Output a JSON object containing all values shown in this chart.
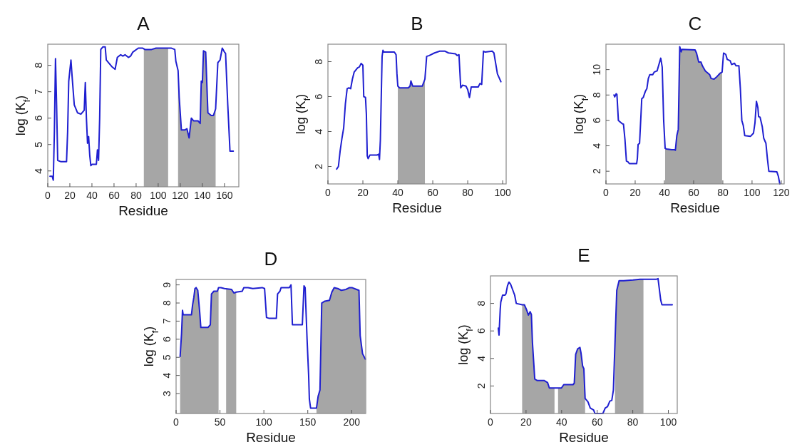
{
  "chart_data": [
    {
      "type": "line",
      "title": "A",
      "xlabel": "Residue",
      "ylabel": "log (K$_{f}$)",
      "xlim": [
        0,
        173
      ],
      "ylim": [
        3.4,
        8.8
      ],
      "xticks": [
        0,
        20,
        40,
        60,
        80,
        100,
        120,
        140,
        160
      ],
      "yticks": [
        4,
        5,
        6,
        7,
        8
      ],
      "series": [
        {
          "type": "area",
          "color": "#a6a6a6",
          "x": [
            87,
            88,
            94,
            98,
            109
          ],
          "values": [
            8.63,
            8.6,
            8.6,
            8.65,
            8.65
          ]
        },
        {
          "type": "area",
          "color": "#a6a6a6",
          "x": [
            118,
            119,
            121,
            124,
            126,
            128,
            130,
            132,
            136,
            138,
            139,
            140,
            141,
            143,
            145,
            148,
            150,
            152
          ],
          "values": [
            7.8,
            6.8,
            5.55,
            5.55,
            5.6,
            5.25,
            6.0,
            5.9,
            5.9,
            5.8,
            7.4,
            7.35,
            8.55,
            8.5,
            6.2,
            6.1,
            6.1,
            6.35
          ]
        },
        {
          "color": "#1f1fd0",
          "x": [
            2,
            4,
            5,
            6,
            7,
            8,
            9,
            12,
            17,
            18,
            19,
            21,
            22,
            24,
            27,
            30,
            33,
            34,
            35,
            36,
            37,
            38,
            39,
            40,
            44,
            45,
            46,
            47,
            48,
            50,
            52,
            53,
            55,
            58,
            61,
            63,
            66,
            68,
            70,
            73,
            75,
            77,
            82,
            86,
            88,
            94,
            98,
            112,
            115,
            116,
            118,
            119,
            121,
            124,
            126,
            128,
            130,
            132,
            136,
            138,
            139,
            140,
            141,
            143,
            145,
            148,
            150,
            152,
            154,
            156,
            158,
            160,
            161,
            163,
            165,
            168
          ],
          "values": [
            3.8,
            3.8,
            3.65,
            5.5,
            8.25,
            6.5,
            4.4,
            4.35,
            4.35,
            5.5,
            7.4,
            8.2,
            7.6,
            6.5,
            6.2,
            6.15,
            6.3,
            7.35,
            6,
            5.05,
            5.3,
            4.6,
            4.2,
            4.25,
            4.25,
            4.8,
            4.4,
            6,
            8.6,
            8.7,
            8.7,
            8.2,
            8.1,
            7.95,
            7.85,
            8.3,
            8.4,
            8.35,
            8.4,
            8.3,
            8.35,
            8.5,
            8.65,
            8.65,
            8.6,
            8.6,
            8.65,
            8.65,
            8.6,
            8.15,
            7.8,
            6.8,
            5.55,
            5.55,
            5.6,
            5.25,
            6.0,
            5.9,
            5.9,
            5.8,
            7.4,
            7.35,
            8.55,
            8.5,
            6.2,
            6.1,
            6.1,
            6.35,
            8.1,
            8.2,
            8.65,
            8.5,
            8.45,
            6.5,
            4.75,
            4.75
          ]
        }
      ]
    },
    {
      "type": "line",
      "title": "B",
      "xlabel": "Residue",
      "ylabel": "log (K$_{f}$)",
      "xlim": [
        0,
        102
      ],
      "ylim": [
        1,
        9
      ],
      "xticks": [
        0,
        20,
        40,
        60,
        80,
        100
      ],
      "yticks": [
        2,
        4,
        6,
        8
      ],
      "series": [
        {
          "type": "area",
          "color": "#a6a6a6",
          "x": [
            40,
            41,
            46,
            47,
            47.5,
            48.5,
            54,
            55.5
          ],
          "values": [
            6.6,
            6.5,
            6.5,
            6.6,
            6.9,
            6.6,
            6.6,
            7.0
          ]
        },
        {
          "color": "#1f1fd0",
          "x": [
            5,
            6,
            7,
            8,
            9,
            10,
            11,
            12,
            13,
            14,
            15,
            17,
            18,
            19,
            20,
            20.5,
            21.5,
            22,
            22.5,
            23,
            24,
            28,
            29,
            29.5,
            30,
            31,
            31.5,
            32,
            38,
            39,
            39.5,
            40,
            41,
            46,
            47,
            47.5,
            48.5,
            54,
            55.5,
            56.5,
            58,
            61,
            64,
            67,
            69,
            73,
            74,
            75,
            76,
            77,
            79,
            80,
            81,
            82,
            86,
            87,
            88,
            89,
            90,
            94,
            95,
            96,
            97,
            99
          ],
          "values": [
            1.85,
            2.0,
            2.9,
            3.6,
            4.2,
            5.6,
            6.45,
            6.5,
            6.45,
            7.0,
            7.4,
            7.65,
            7.7,
            7.9,
            7.8,
            6.0,
            5.95,
            5.0,
            2.6,
            2.45,
            2.65,
            2.65,
            2.7,
            2.4,
            3.5,
            8.3,
            8.65,
            8.55,
            8.55,
            8.4,
            7.3,
            6.6,
            6.5,
            6.5,
            6.6,
            6.9,
            6.6,
            6.6,
            7.0,
            8.3,
            8.35,
            8.5,
            8.6,
            8.6,
            8.5,
            8.45,
            8.35,
            8.4,
            6.5,
            6.65,
            6.6,
            6.4,
            5.95,
            6.55,
            6.55,
            6.75,
            6.7,
            8.6,
            8.55,
            8.6,
            8.5,
            7.9,
            7.3,
            6.85
          ]
        }
      ]
    },
    {
      "type": "line",
      "title": "C",
      "xlabel": "Residue",
      "ylabel": "log (K$_{f}$)",
      "xlim": [
        0,
        122
      ],
      "ylim": [
        1,
        12
      ],
      "xticks": [
        0,
        20,
        40,
        60,
        80,
        100,
        120
      ],
      "yticks": [
        2,
        4,
        6,
        8,
        10
      ],
      "series": [
        {
          "type": "area",
          "color": "#a6a6a6",
          "x": [
            40.5,
            41.5,
            45,
            47,
            47.5,
            48.5,
            49.5,
            50.5,
            51.5,
            52,
            61,
            62,
            63.5,
            65,
            66,
            68,
            70,
            71,
            72,
            74,
            76,
            78,
            79.5
          ],
          "values": [
            3.8,
            3.75,
            3.7,
            3.7,
            3.65,
            4.8,
            5.3,
            11.8,
            11.4,
            11.6,
            11.55,
            11.3,
            10.6,
            10.6,
            10.3,
            9.9,
            9.7,
            9.6,
            9.3,
            9.25,
            9.45,
            9.7,
            9.8
          ]
        },
        {
          "color": "#1f1fd0",
          "x": [
            5.5,
            6,
            7,
            7.5,
            8.5,
            9.5,
            11,
            12,
            13,
            14,
            15,
            16,
            21,
            21.5,
            22,
            23,
            24,
            24.5,
            25.5,
            27,
            28,
            29,
            30,
            32,
            33,
            35,
            36,
            37.5,
            38.5,
            39.5,
            40.5,
            41.5,
            45,
            47,
            47.5,
            48.5,
            49.5,
            50.5,
            51.5,
            52,
            61,
            62,
            63.5,
            65,
            66,
            68,
            70,
            71,
            72,
            74,
            76,
            78,
            79.5,
            80.5,
            82,
            83,
            85,
            86,
            88,
            89,
            91,
            92,
            93,
            94,
            95,
            99,
            101,
            102,
            103,
            104,
            104.5,
            105.5,
            107,
            108,
            109.5,
            110.5,
            111.5,
            117,
            118,
            119
          ],
          "values": [
            8.0,
            7.85,
            8.1,
            8.05,
            6.0,
            5.9,
            5.75,
            5.7,
            4.5,
            2.8,
            2.75,
            2.6,
            2.6,
            3.0,
            4.1,
            4.2,
            6.5,
            7.7,
            7.8,
            8.3,
            8.5,
            9.3,
            9.6,
            9.6,
            9.8,
            9.9,
            10.3,
            10.9,
            10.2,
            6.0,
            3.8,
            3.75,
            3.7,
            3.7,
            3.65,
            4.8,
            5.3,
            11.8,
            11.4,
            11.6,
            11.55,
            11.3,
            10.6,
            10.6,
            10.3,
            9.9,
            9.7,
            9.6,
            9.3,
            9.25,
            9.45,
            9.7,
            9.8,
            11.3,
            11.2,
            10.8,
            10.7,
            10.4,
            10.5,
            10.3,
            10.3,
            8.5,
            6.0,
            5.6,
            4.8,
            4.75,
            5.0,
            5.8,
            7.5,
            7.0,
            6.3,
            6.25,
            5.5,
            4.6,
            4.2,
            3.0,
            2.0,
            1.95,
            1.6,
            1.0
          ]
        }
      ]
    },
    {
      "type": "line",
      "title": "D",
      "xlabel": "Residue",
      "ylabel": "log (K$_{f}$)",
      "xlim": [
        0,
        216
      ],
      "ylim": [
        1.9,
        9.3
      ],
      "xticks": [
        0,
        50,
        100,
        150,
        200
      ],
      "yticks": [
        3,
        4,
        5,
        6,
        7,
        8,
        9
      ],
      "series": [
        {
          "type": "area",
          "color": "#a6a6a6",
          "x": [
            4.6,
            6.2,
            7.3,
            8.1,
            17.5,
            18.8,
            20.2,
            21.5,
            22.8,
            24.7,
            26.9,
            28.2,
            36.3,
            39,
            40.3,
            43,
            47,
            48.4
          ],
          "values": [
            5.05,
            6.3,
            7.6,
            7.35,
            7.35,
            7.9,
            8.3,
            8.8,
            8.85,
            8.7,
            7.5,
            6.65,
            6.65,
            6.8,
            8.5,
            8.65,
            8.65,
            8.85
          ]
        },
        {
          "type": "area",
          "color": "#a6a6a6",
          "x": [
            57,
            63.2,
            65.9,
            68.5
          ],
          "values": [
            8.8,
            8.75,
            8.55,
            8.6
          ]
        },
        {
          "type": "area",
          "color": "#a6a6a6",
          "x": [
            159.9,
            161.8,
            163.9,
            165.9,
            169.4,
            174.7,
            177.4,
            180.1,
            184.1,
            188.2,
            193.5,
            197.6,
            200.3,
            205.6,
            208.3,
            209.7,
            212.4,
            215.6
          ],
          "values": [
            2.2,
            2.85,
            3.2,
            8.0,
            8.1,
            8.15,
            8.6,
            8.85,
            8.8,
            8.7,
            8.75,
            8.85,
            8.85,
            8.75,
            8.7,
            6.2,
            5.2,
            4.9
          ]
        },
        {
          "color": "#1f1fd0",
          "x": [
            4.6,
            6.2,
            7.3,
            8.1,
            17.5,
            18.8,
            20.2,
            21.5,
            22.8,
            24.7,
            26.9,
            28.2,
            36.3,
            39,
            40.3,
            43,
            47,
            48.4,
            51.1,
            55.1,
            63.2,
            65.9,
            68.5,
            75.3,
            77.2,
            82,
            87.4,
            98.1,
            100.8,
            103,
            106.2,
            114.2,
            115.6,
            118.3,
            119.6,
            129,
            130.9,
            132.5,
            143.8,
            145.7,
            147,
            149.2,
            151,
            151.8,
            153.2,
            159.9,
            161.8,
            163.9,
            165.9,
            169.4,
            174.7,
            177.4,
            180.1,
            184.1,
            188.2,
            193.5,
            197.6,
            200.3,
            205.6,
            208.3,
            209.7,
            212.4,
            215.6
          ],
          "values": [
            5.05,
            6.3,
            7.6,
            7.35,
            7.35,
            7.9,
            8.3,
            8.8,
            8.85,
            8.7,
            7.5,
            6.65,
            6.65,
            6.8,
            8.5,
            8.65,
            8.65,
            8.85,
            8.85,
            8.8,
            8.75,
            8.55,
            8.6,
            8.65,
            8.85,
            8.85,
            8.8,
            8.85,
            8.8,
            7.2,
            7.15,
            7.15,
            8.5,
            8.65,
            8.85,
            8.85,
            9.0,
            6.8,
            6.8,
            8.95,
            8.85,
            6.0,
            4.0,
            2.7,
            2.2,
            2.2,
            2.85,
            3.2,
            8.0,
            8.1,
            8.15,
            8.6,
            8.85,
            8.8,
            8.7,
            8.75,
            8.85,
            8.85,
            8.75,
            8.7,
            6.2,
            5.2,
            4.9
          ]
        }
      ]
    },
    {
      "type": "line",
      "title": "E",
      "xlabel": "Residue",
      "ylabel": "log (K$_{f}$)",
      "xlim": [
        0,
        105
      ],
      "ylim": [
        0,
        10
      ],
      "xticks": [
        0,
        20,
        40,
        60,
        80,
        100
      ],
      "yticks": [
        2,
        4,
        6,
        8
      ],
      "series": [
        {
          "type": "area",
          "color": "#a6a6a6",
          "x": [
            17.8,
            19.1,
            20.4,
            21.3,
            22.3,
            23,
            23.6,
            24.9,
            26.2,
            30.1,
            32.1,
            33.1,
            36
          ],
          "values": [
            7.9,
            7.9,
            7.5,
            7.15,
            7.4,
            7.2,
            5.15,
            2.5,
            2.4,
            2.4,
            2.25,
            1.85,
            1.85
          ]
        },
        {
          "type": "area",
          "color": "#a6a6a6",
          "x": [
            38,
            39.9,
            41.2,
            46.4,
            47.1,
            47.9,
            49,
            50.3,
            50.9,
            51.8,
            52.5,
            53.2
          ],
          "values": [
            1.85,
            1.85,
            2.1,
            2.1,
            2.2,
            4.3,
            4.7,
            4.8,
            4.4,
            3.45,
            3.25,
            1.1
          ]
        },
        {
          "type": "area",
          "color": "#a6a6a6",
          "x": [
            70,
            71,
            72.3,
            74.9,
            80.1,
            84,
            86
          ],
          "values": [
            5.15,
            8.95,
            9.65,
            9.65,
            9.7,
            9.75,
            9.75
          ]
        },
        {
          "color": "#1f1fd0",
          "x": [
            4.4,
            4.8,
            5.5,
            5.8,
            6.8,
            8.1,
            8.7,
            9.6,
            10.4,
            11.3,
            12.6,
            13.6,
            14.5,
            17.8,
            19.1,
            20.4,
            21.3,
            22.3,
            23,
            23.6,
            24.9,
            26.2,
            30.1,
            32.1,
            33.1,
            36,
            39.9,
            41.2,
            46.4,
            47.1,
            47.9,
            49,
            50.3,
            50.9,
            51.8,
            52.5,
            53.2,
            54.8,
            56.1,
            58,
            58.7,
            63.2,
            64.5,
            65.8,
            67.1,
            68.2,
            69.1,
            70,
            71,
            72.3,
            74.9,
            80.1,
            84,
            93.1,
            94.2,
            95.7,
            96.4,
            102.2
          ],
          "values": [
            6.2,
            5.7,
            7.6,
            8.1,
            8.6,
            8.6,
            8.7,
            9.3,
            9.55,
            9.4,
            8.95,
            8.6,
            8,
            7.9,
            7.9,
            7.5,
            7.15,
            7.4,
            7.2,
            5.15,
            2.5,
            2.4,
            2.4,
            2.25,
            1.85,
            1.85,
            1.85,
            2.1,
            2.1,
            2.2,
            4.3,
            4.7,
            4.8,
            4.4,
            3.45,
            3.25,
            1.1,
            0.85,
            0.4,
            0.25,
            0,
            0,
            0.4,
            0.5,
            0.9,
            0.95,
            1.7,
            5.15,
            8.95,
            9.65,
            9.65,
            9.7,
            9.75,
            9.75,
            9.8,
            8.25,
            7.9,
            7.9
          ]
        }
      ]
    }
  ]
}
